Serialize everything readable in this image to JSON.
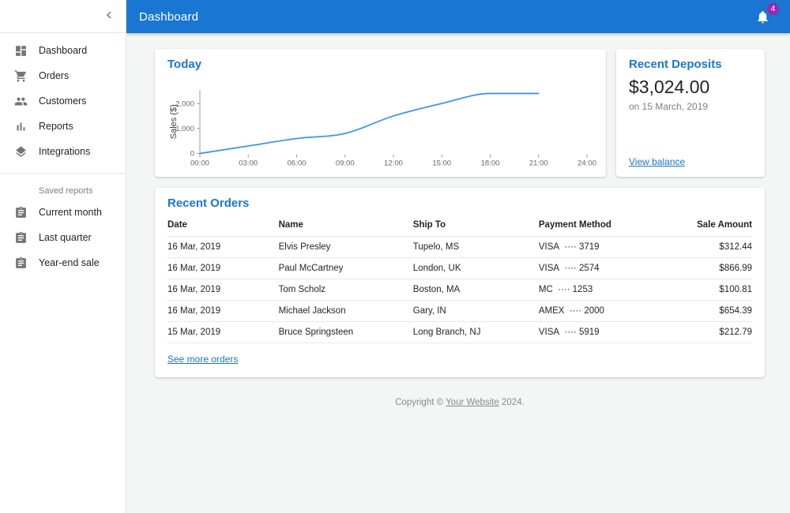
{
  "app": {
    "title": "Dashboard",
    "notification_count": "4"
  },
  "sidebar": {
    "main_items": [
      {
        "id": "dashboard",
        "icon": "dashboard",
        "label": "Dashboard"
      },
      {
        "id": "orders",
        "icon": "cart",
        "label": "Orders"
      },
      {
        "id": "customers",
        "icon": "people",
        "label": "Customers"
      },
      {
        "id": "reports",
        "icon": "barchart",
        "label": "Reports"
      },
      {
        "id": "integrations",
        "icon": "layers",
        "label": "Integrations"
      }
    ],
    "section_label": "Saved reports",
    "saved_items": [
      {
        "id": "current-month",
        "icon": "assignment",
        "label": "Current month"
      },
      {
        "id": "last-quarter",
        "icon": "assignment",
        "label": "Last quarter"
      },
      {
        "id": "year-end-sale",
        "icon": "assignment",
        "label": "Year-end sale"
      }
    ]
  },
  "chart_data": {
    "type": "line",
    "title": "Today",
    "x": [
      "00:00",
      "03:00",
      "06:00",
      "09:00",
      "12:00",
      "15:00",
      "18:00",
      "21:00",
      "24:00"
    ],
    "values": [
      0,
      300,
      600,
      800,
      1500,
      2000,
      2400,
      2400,
      null
    ],
    "xlabel": "",
    "ylabel": "Sales ($)",
    "ylim": [
      0,
      2520
    ],
    "yticks": [
      {
        "v": 0,
        "label": "0"
      },
      {
        "v": 1000,
        "label": "1,000"
      },
      {
        "v": 2000,
        "label": "2,000"
      }
    ],
    "grid": false,
    "legend": "none",
    "line_color": "#4094ed",
    "axis_color": "#9e9e9e",
    "tick_text_color": "#666666"
  },
  "deposits": {
    "title": "Recent Deposits",
    "amount": "$3,024.00",
    "date": "on 15 March, 2019",
    "link": "View balance"
  },
  "orders": {
    "title": "Recent Orders",
    "headers": [
      "Date",
      "Name",
      "Ship To",
      "Payment Method",
      "Sale Amount"
    ],
    "rows": [
      [
        "16 Mar, 2019",
        "Elvis Presley",
        "Tupelo, MS",
        "VISA  ···· 3719",
        "$312.44"
      ],
      [
        "16 Mar, 2019",
        "Paul McCartney",
        "London, UK",
        "VISA  ···· 2574",
        "$866.99"
      ],
      [
        "16 Mar, 2019",
        "Tom Scholz",
        "Boston, MA",
        "MC  ···· 1253",
        "$100.81"
      ],
      [
        "16 Mar, 2019",
        "Michael Jackson",
        "Gary, IN",
        "AMEX  ···· 2000",
        "$654.39"
      ],
      [
        "15 Mar, 2019",
        "Bruce Springsteen",
        "Long Branch, NJ",
        "VISA  ···· 5919",
        "$212.79"
      ]
    ],
    "link": "See more orders"
  },
  "footer": {
    "prefix": "Copyright © ",
    "link": "Your Website",
    "suffix": " 2024."
  },
  "colors": {
    "appbar": "#1976d2",
    "accent": "#1976d2",
    "badge": "#9c27b0",
    "background": "#f4f5f5"
  }
}
